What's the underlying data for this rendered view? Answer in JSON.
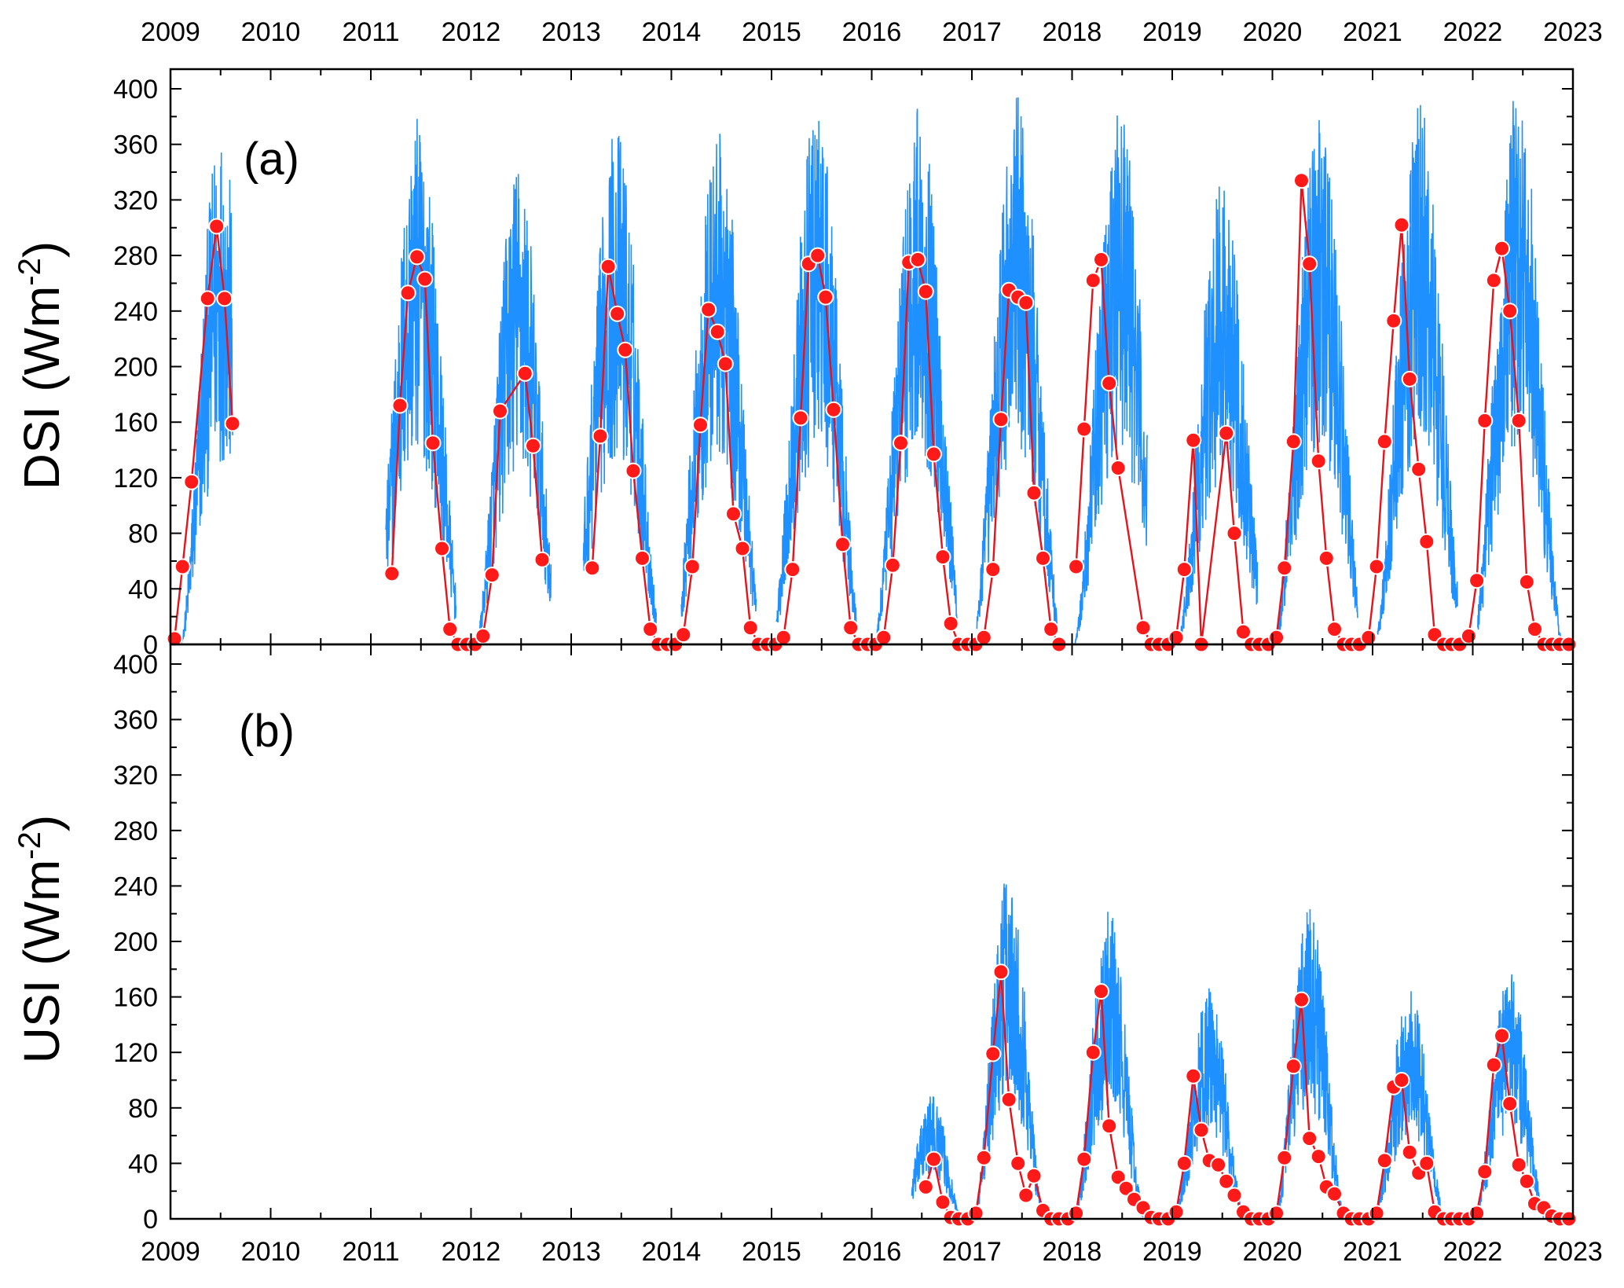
{
  "chart_data": [
    {
      "type": "line",
      "panel_label": "(a)",
      "ylabel": "DSI (Wm",
      "ylabel_sup": "-2",
      "ylabel_tail": ")",
      "xlim": [
        2009,
        2023
      ],
      "ylim": [
        0,
        420
      ],
      "yticks": [
        "0",
        "40",
        "80",
        "120",
        "160",
        "200",
        "240",
        "280",
        "320",
        "360",
        "400"
      ],
      "xticks_top": [
        "2009",
        "2010",
        "2011",
        "2012",
        "2013",
        "2014",
        "2015",
        "2016",
        "2017",
        "2018",
        "2019",
        "2020",
        "2021",
        "2022",
        "2023"
      ],
      "colors": {
        "daily": "#1e90ff",
        "monthly": "#e8121b",
        "marker": "#ff1a1a"
      },
      "series": [
        {
          "style": "daily",
          "peaks": [
            {
              "center": 2009.5,
              "halfwidth": 0.4,
              "max": 375,
              "range": [
                2009.05,
                2009.62
              ]
            },
            {
              "center": 2011.47,
              "halfwidth": 0.45,
              "max": 380,
              "range": [
                2011.15,
                2011.85
              ]
            },
            {
              "center": 2012.47,
              "halfwidth": 0.42,
              "max": 350,
              "range": [
                2012.05,
                2012.8
              ]
            },
            {
              "center": 2013.45,
              "halfwidth": 0.45,
              "max": 375,
              "range": [
                2013.12,
                2013.85
              ]
            },
            {
              "center": 2014.47,
              "halfwidth": 0.45,
              "max": 370,
              "range": [
                2014.1,
                2014.85
              ]
            },
            {
              "center": 2015.45,
              "halfwidth": 0.45,
              "max": 385,
              "range": [
                2015.05,
                2015.85
              ]
            },
            {
              "center": 2016.47,
              "halfwidth": 0.45,
              "max": 390,
              "range": [
                2016.05,
                2016.85
              ]
            },
            {
              "center": 2017.45,
              "halfwidth": 0.45,
              "max": 395,
              "range": [
                2017.05,
                2017.85
              ]
            },
            {
              "center": 2018.47,
              "halfwidth": 0.45,
              "max": 392,
              "range": [
                2017.95,
                2018.75
              ]
            },
            {
              "center": 2019.5,
              "halfwidth": 0.45,
              "max": 335,
              "range": [
                2019.05,
                2019.85
              ]
            },
            {
              "center": 2020.47,
              "halfwidth": 0.45,
              "max": 392,
              "range": [
                2020.05,
                2020.85
              ]
            },
            {
              "center": 2021.47,
              "halfwidth": 0.45,
              "max": 390,
              "range": [
                2021.05,
                2021.85
              ]
            },
            {
              "center": 2022.45,
              "halfwidth": 0.45,
              "max": 400,
              "range": [
                2022.05,
                2022.95
              ]
            }
          ]
        },
        {
          "style": "monthly",
          "segments": [
            {
              "x": [
                2009.04,
                2009.12,
                2009.21,
                2009.37,
                2009.46,
                2009.54,
                2009.62
              ],
              "y": [
                4,
                56,
                117,
                249,
                301,
                249,
                159
              ]
            },
            {
              "x": [
                2011.21,
                2011.29,
                2011.37,
                2011.46,
                2011.54,
                2011.62,
                2011.71,
                2011.79,
                2011.87,
                2011.96,
                2012.04,
                2012.12,
                2012.21,
                2012.29,
                2012.54,
                2012.62,
                2012.71
              ],
              "y": [
                51,
                172,
                253,
                279,
                263,
                145,
                69,
                11,
                0,
                0,
                0,
                6,
                50,
                168,
                195,
                143,
                61
              ]
            },
            {
              "x": [
                2013.21,
                2013.29,
                2013.37,
                2013.46,
                2013.54,
                2013.62,
                2013.71,
                2013.79,
                2013.87,
                2013.96,
                2014.04,
                2014.12,
                2014.21,
                2014.29,
                2014.37,
                2014.46,
                2014.54,
                2014.62,
                2014.71,
                2014.79,
                2014.87,
                2014.96,
                2015.04,
                2015.12,
                2015.21,
                2015.29,
                2015.37,
                2015.46,
                2015.54,
                2015.62,
                2015.71,
                2015.79,
                2015.87,
                2015.96,
                2016.04,
                2016.12,
                2016.21,
                2016.29,
                2016.37,
                2016.46,
                2016.54,
                2016.62,
                2016.71,
                2016.79,
                2016.87,
                2016.96,
                2017.04,
                2017.12,
                2017.21,
                2017.29,
                2017.37,
                2017.46,
                2017.54,
                2017.62,
                2017.71,
                2017.79,
                2017.87
              ],
              "y": [
                55,
                150,
                272,
                238,
                212,
                125,
                62,
                11,
                0,
                0,
                0,
                7,
                56,
                158,
                241,
                225,
                202,
                94,
                69,
                12,
                0,
                0,
                0,
                5,
                54,
                163,
                274,
                280,
                250,
                169,
                72,
                12,
                0,
                0,
                0,
                5,
                57,
                145,
                275,
                277,
                254,
                137,
                63,
                15,
                0,
                0,
                0,
                5,
                54,
                162,
                255,
                250,
                246,
                109,
                62,
                11,
                0
              ]
            },
            {
              "x": [
                2018.04,
                2018.12,
                2018.21,
                2018.29,
                2018.37,
                2018.46,
                2018.71,
                2018.79,
                2018.87,
                2018.96,
                2019.04,
                2019.12,
                2019.21,
                2019.29,
                2019.54,
                2019.62,
                2019.71,
                2019.79,
                2019.87,
                2019.96,
                2020.04,
                2020.12,
                2020.21,
                2020.29,
                2020.37,
                2020.46,
                2020.54,
                2020.62,
                2020.71,
                2020.79,
                2020.87,
                2020.96,
                2021.04,
                2021.12,
                2021.21,
                2021.29,
                2021.37,
                2021.46,
                2021.54,
                2021.62,
                2021.71,
                2021.79,
                2021.87,
                2021.96,
                2022.04,
                2022.12,
                2022.21,
                2022.29,
                2022.37,
                2022.46,
                2022.54,
                2022.62,
                2022.71,
                2022.79,
                2022.87,
                2022.96
              ],
              "y": [
                56,
                155,
                262,
                277,
                188,
                127,
                12,
                0,
                0,
                0,
                5,
                54,
                147,
                0,
                152,
                80,
                9,
                0,
                0,
                0,
                5,
                55,
                146,
                334,
                274,
                132,
                62,
                11,
                0,
                0,
                0,
                5,
                56,
                146,
                233,
                302,
                191,
                126,
                74,
                7,
                0,
                0,
                0,
                6,
                46,
                161,
                262,
                285,
                240,
                161,
                45,
                11,
                0,
                0,
                0,
                0
              ]
            }
          ]
        }
      ]
    },
    {
      "type": "line",
      "panel_label": "(b)",
      "ylabel": "USI (Wm",
      "ylabel_sup": "-2",
      "ylabel_tail": ")",
      "xlim": [
        2009,
        2023
      ],
      "ylim": [
        0,
        420
      ],
      "yticks": [
        "0",
        "40",
        "80",
        "120",
        "160",
        "200",
        "240",
        "280",
        "320",
        "360",
        "400"
      ],
      "xticks_bottom": [
        "2009",
        "2010",
        "2011",
        "2012",
        "2013",
        "2014",
        "2015",
        "2016",
        "2017",
        "2018",
        "2019",
        "2020",
        "2021",
        "2022",
        "2023"
      ],
      "series": [
        {
          "style": "daily",
          "peaks": [
            {
              "center": 2016.6,
              "halfwidth": 0.3,
              "max": 90,
              "range": [
                2016.4,
                2016.9
              ]
            },
            {
              "center": 2017.37,
              "halfwidth": 0.35,
              "max": 253,
              "range": [
                2017.05,
                2017.9
              ]
            },
            {
              "center": 2018.37,
              "halfwidth": 0.35,
              "max": 222,
              "range": [
                2018.05,
                2018.9
              ]
            },
            {
              "center": 2019.37,
              "halfwidth": 0.35,
              "max": 170,
              "range": [
                2019.05,
                2019.9
              ]
            },
            {
              "center": 2020.37,
              "halfwidth": 0.35,
              "max": 226,
              "range": [
                2020.05,
                2020.9
              ]
            },
            {
              "center": 2021.37,
              "halfwidth": 0.35,
              "max": 170,
              "range": [
                2021.05,
                2021.9
              ]
            },
            {
              "center": 2022.37,
              "halfwidth": 0.35,
              "max": 182,
              "range": [
                2022.05,
                2022.95
              ]
            }
          ]
        },
        {
          "style": "monthly",
          "segments": [
            {
              "x": [
                2016.54,
                2016.62,
                2016.71,
                2016.79,
                2016.87,
                2016.96,
                2017.04,
                2017.12,
                2017.21,
                2017.29,
                2017.37,
                2017.46,
                2017.54,
                2017.62,
                2017.71,
                2017.79,
                2017.87,
                2017.96,
                2018.04,
                2018.12,
                2018.21,
                2018.29,
                2018.37,
                2018.46,
                2018.54,
                2018.62,
                2018.71,
                2018.79,
                2018.87,
                2018.96,
                2019.04,
                2019.12,
                2019.21,
                2019.29,
                2019.37,
                2019.46,
                2019.54,
                2019.62,
                2019.71,
                2019.79,
                2019.87,
                2019.96,
                2020.04,
                2020.12,
                2020.21,
                2020.29,
                2020.37,
                2020.46,
                2020.54,
                2020.62,
                2020.71,
                2020.79,
                2020.87,
                2020.96,
                2021.04,
                2021.12,
                2021.21,
                2021.29,
                2021.37,
                2021.46,
                2021.54,
                2021.62,
                2021.71,
                2021.79,
                2021.87,
                2021.96,
                2022.04,
                2022.12,
                2022.21,
                2022.29,
                2022.37,
                2022.46,
                2022.54,
                2022.62,
                2022.71,
                2022.79,
                2022.87,
                2022.96
              ],
              "y": [
                23,
                43,
                12,
                1,
                0,
                0,
                4,
                44,
                119,
                178,
                86,
                40,
                17,
                31,
                6,
                0,
                0,
                0,
                4,
                43,
                120,
                164,
                67,
                30,
                22,
                14,
                8,
                1,
                0,
                0,
                5,
                40,
                103,
                64,
                42,
                39,
                27,
                17,
                5,
                0,
                0,
                0,
                4,
                44,
                110,
                158,
                58,
                45,
                23,
                18,
                4,
                0,
                0,
                0,
                4,
                42,
                95,
                100,
                48,
                33,
                40,
                5,
                0,
                0,
                0,
                0,
                4,
                34,
                111,
                132,
                83,
                39,
                27,
                11,
                8,
                2,
                0,
                0
              ]
            }
          ]
        }
      ]
    }
  ]
}
